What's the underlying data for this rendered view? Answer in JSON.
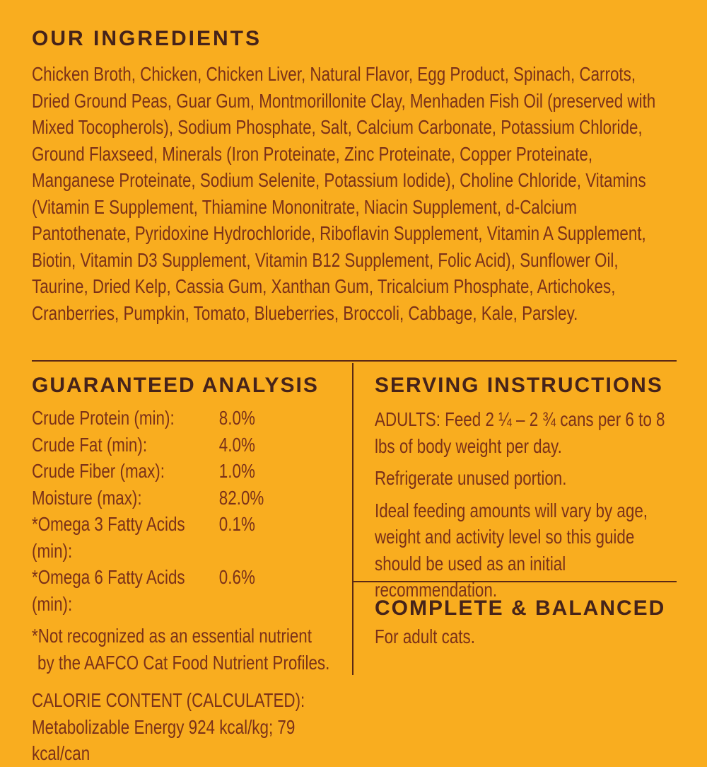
{
  "colors": {
    "background": "#f9ad1f",
    "heading_text": "#46231a",
    "body_text": "#7b3119",
    "divider": "#5b2815"
  },
  "ingredients": {
    "title": "OUR INGREDIENTS",
    "text": "Chicken Broth, Chicken, Chicken Liver, Natural Flavor, Egg Product, Spinach, Carrots, Dried Ground Peas, Guar Gum, Montmorillonite Clay, Menhaden Fish Oil (preserved with Mixed Tocopherols), Sodium Phosphate, Salt, Calcium Carbonate, Potassium Chloride, Ground Flaxseed, Minerals (Iron Proteinate, Zinc Proteinate, Copper Proteinate, Manganese Proteinate, Sodium Selenite, Potassium Iodide), Choline Chloride, Vitamins (Vitamin E Supplement, Thiamine Mononitrate, Niacin Supplement, d-Calcium Pantothenate, Pyridoxine Hydrochloride, Riboflavin Supplement, Vitamin A Supplement, Biotin, Vitamin D3 Supplement, Vitamin B12 Supplement, Folic Acid), Sunflower Oil, Taurine, Dried Kelp, Cassia Gum, Xanthan Gum, Tricalcium Phosphate, Artichokes, Cranberries, Pumpkin, Tomato, Blueberries, Broccoli, Cabbage, Kale, Parsley."
  },
  "guaranteed_analysis": {
    "title": "GUARANTEED ANALYSIS",
    "rows": [
      {
        "label": "Crude Protein (min):",
        "value": "8.0%"
      },
      {
        "label": "Crude Fat (min):",
        "value": "4.0%"
      },
      {
        "label": "Crude Fiber (max):",
        "value": "1.0%"
      },
      {
        "label": "Moisture (max):",
        "value": "82.0%"
      },
      {
        "label": "*Omega 3 Fatty Acids (min):",
        "value": "0.1%"
      },
      {
        "label": "*Omega 6 Fatty Acids (min):",
        "value": "0.6%"
      }
    ],
    "footnote_line1": "*Not recognized as an essential nutrient",
    "footnote_line2": "by the AAFCO Cat Food Nutrient Profiles.",
    "calorie_heading": "CALORIE CONTENT (CALCULATED):",
    "calorie_text": "Metabolizable Energy 924 kcal/kg; 79 kcal/can"
  },
  "serving_instructions": {
    "title": "SERVING INSTRUCTIONS",
    "adults_text": "ADULTS: Feed 2 ¼ – 2 ¾ cans per 6 to 8 lbs of body weight per day.",
    "refrigerate_text": "Refrigerate unused portion.",
    "ideal_text": "Ideal feeding amounts will vary by age, weight and activity level so this guide should be used as an initial recommendation."
  },
  "complete_balanced": {
    "title": "COMPLETE & BALANCED",
    "subtitle": "For adult cats."
  }
}
